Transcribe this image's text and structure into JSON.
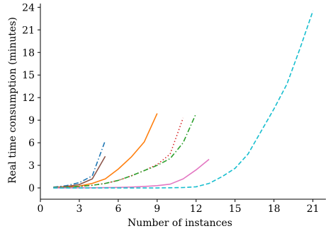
{
  "chart_data": {
    "type": "line",
    "title": "",
    "xlabel": "Number of instances",
    "ylabel": "Real time consumption (minutes)",
    "xlim": [
      0,
      22
    ],
    "ylim": [
      -1.5,
      24.5
    ],
    "xticks": [
      0,
      3,
      6,
      9,
      12,
      15,
      18,
      21
    ],
    "yticks": [
      0,
      3,
      6,
      9,
      12,
      15,
      18,
      21,
      24
    ],
    "grid": false,
    "legend": "none",
    "series": [
      {
        "color": "#1f77b4",
        "dash": "dashdot",
        "x": [
          1,
          2,
          3,
          4,
          5
        ],
        "y": [
          0.1,
          0.3,
          0.7,
          1.6,
          6.3
        ]
      },
      {
        "color": "#8c564b",
        "dash": "solid",
        "x": [
          1,
          2,
          3,
          4,
          5
        ],
        "y": [
          0.05,
          0.2,
          0.45,
          1.2,
          4.2
        ]
      },
      {
        "color": "#ff7f0e",
        "dash": "solid",
        "x": [
          1,
          2,
          3,
          4,
          5,
          6,
          7,
          8,
          9
        ],
        "y": [
          0.05,
          0.1,
          0.25,
          0.6,
          1.2,
          2.5,
          4.1,
          6.1,
          9.9
        ]
      },
      {
        "color": "#d62728",
        "dash": "dotted",
        "x": [
          1,
          2,
          3,
          4,
          5,
          6,
          7,
          8,
          9,
          10,
          11
        ],
        "y": [
          0.05,
          0.1,
          0.2,
          0.35,
          0.6,
          1.0,
          1.6,
          2.3,
          3.1,
          4.5,
          9.3
        ]
      },
      {
        "color": "#2ca02c",
        "dash": "dashdot",
        "x": [
          1,
          2,
          3,
          4,
          5,
          6,
          7,
          8,
          9,
          10,
          11,
          12
        ],
        "y": [
          0.05,
          0.1,
          0.2,
          0.35,
          0.6,
          1.0,
          1.6,
          2.3,
          3.0,
          3.9,
          6.0,
          9.9
        ]
      },
      {
        "color": "#e377c2",
        "dash": "solid",
        "x": [
          1,
          2,
          3,
          4,
          5,
          6,
          7,
          8,
          9,
          10,
          11,
          12,
          13
        ],
        "y": [
          0,
          0,
          0.01,
          0.02,
          0.04,
          0.07,
          0.12,
          0.2,
          0.3,
          0.5,
          1.2,
          2.4,
          3.8
        ]
      },
      {
        "color": "#17becf",
        "dash": "dashed",
        "x": [
          1,
          2,
          3,
          4,
          5,
          6,
          7,
          8,
          9,
          10,
          11,
          12,
          13,
          14,
          15,
          16,
          17,
          18,
          19,
          20,
          21
        ],
        "y": [
          0,
          0,
          0,
          0,
          0,
          0,
          0,
          0,
          0,
          0.02,
          0.05,
          0.15,
          0.6,
          1.5,
          2.6,
          4.5,
          7.5,
          10.5,
          13.8,
          18.5,
          23.5
        ]
      }
    ]
  }
}
